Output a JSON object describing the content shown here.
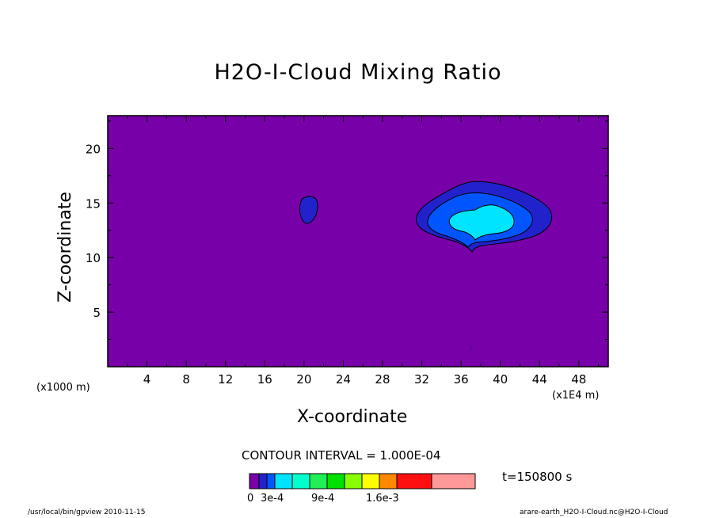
{
  "chart_data": {
    "type": "contour",
    "title": "H2O-I-Cloud Mixing Ratio",
    "xlabel": "X-coordinate",
    "ylabel": "Z-coordinate",
    "x_unit_left": "(x1000 m)",
    "x_unit_right": "(x1E4 m)",
    "xlim": [
      0,
      51
    ],
    "ylim": [
      0,
      23
    ],
    "x_ticks": [
      4,
      8,
      12,
      16,
      20,
      24,
      28,
      32,
      36,
      40,
      44,
      48
    ],
    "y_ticks": [
      5,
      10,
      15,
      20
    ],
    "contour_interval": "CONTOUR INTERVAL = 1.000E-04",
    "time": "t=150800 s",
    "background_level": 0,
    "features": [
      {
        "name": "small-cell",
        "center": [
          20.6,
          14.3
        ],
        "levels": [
          0.0001
        ]
      },
      {
        "name": "main-cloud",
        "center": [
          38.5,
          13.4
        ],
        "levels": [
          0.0001,
          0.0002,
          0.0003
        ]
      }
    ],
    "colorbar": {
      "colors": [
        "#7700a8",
        "#2222cc",
        "#0055ff",
        "#00e4ff",
        "#00ffcc",
        "#22ee55",
        "#00e000",
        "#88ff00",
        "#ffff00",
        "#ff8800",
        "#ff1010",
        "#ff9999"
      ],
      "labels": [
        "0",
        "3e-4",
        "9e-4",
        "1.6e-3"
      ]
    }
  },
  "footer": {
    "left": "/usr/local/bin/gpview  2010-11-15",
    "right": "arare-earth_H2O-I-Cloud.nc@H2O-I-Cloud"
  }
}
